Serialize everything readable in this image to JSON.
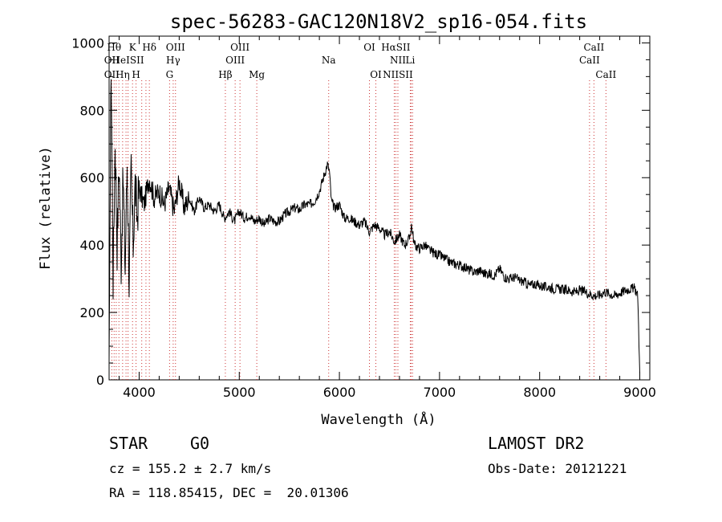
{
  "chart_data": {
    "type": "line",
    "title": "spec-56283-GAC120N18V2_sp16-054.fits",
    "xlabel": "Wavelength (Å)",
    "ylabel": "Flux (relative)",
    "xlim": [
      3700,
      9100
    ],
    "ylim": [
      0,
      1020
    ],
    "x_ticks": [
      4000,
      5000,
      6000,
      7000,
      8000,
      9000
    ],
    "y_ticks": [
      0,
      200,
      400,
      600,
      800,
      1000
    ],
    "grid": false,
    "series": [
      {
        "color": "#000000",
        "x": [
          3700,
          3720,
          3740,
          3760,
          3780,
          3800,
          3820,
          3840,
          3860,
          3880,
          3900,
          3920,
          3940,
          3960,
          3980,
          4000,
          4050,
          4100,
          4150,
          4200,
          4250,
          4300,
          4350,
          4400,
          4450,
          4500,
          4550,
          4600,
          4650,
          4700,
          4750,
          4800,
          4850,
          4900,
          4950,
          5000,
          5050,
          5100,
          5150,
          5200,
          5250,
          5300,
          5350,
          5400,
          5450,
          5500,
          5550,
          5600,
          5650,
          5700,
          5750,
          5800,
          5850,
          5880,
          5900,
          5920,
          5950,
          6000,
          6050,
          6100,
          6150,
          6200,
          6250,
          6300,
          6350,
          6400,
          6450,
          6500,
          6550,
          6600,
          6650,
          6700,
          6720,
          6750,
          6800,
          6850,
          6900,
          6950,
          7000,
          7050,
          7100,
          7150,
          7200,
          7250,
          7300,
          7350,
          7400,
          7450,
          7500,
          7550,
          7600,
          7650,
          7700,
          7750,
          7800,
          7850,
          7900,
          7950,
          8000,
          8050,
          8100,
          8150,
          8200,
          8250,
          8300,
          8350,
          8400,
          8450,
          8500,
          8550,
          8600,
          8650,
          8700,
          8750,
          8800,
          8850,
          8900,
          8950,
          8980,
          9000
        ],
        "y": [
          60,
          950,
          300,
          720,
          400,
          650,
          350,
          600,
          330,
          650,
          290,
          620,
          400,
          580,
          480,
          570,
          520,
          600,
          540,
          560,
          520,
          570,
          500,
          590,
          510,
          540,
          500,
          540,
          510,
          520,
          500,
          520,
          480,
          500,
          470,
          500,
          480,
          490,
          470,
          480,
          460,
          480,
          470,
          470,
          490,
          500,
          510,
          505,
          520,
          520,
          530,
          560,
          610,
          640,
          620,
          530,
          510,
          520,
          480,
          480,
          470,
          460,
          470,
          440,
          460,
          450,
          430,
          440,
          410,
          430,
          400,
          420,
          460,
          400,
          390,
          400,
          385,
          375,
          370,
          360,
          350,
          345,
          340,
          335,
          325,
          320,
          325,
          315,
          315,
          310,
          330,
          305,
          300,
          305,
          295,
          290,
          280,
          285,
          280,
          275,
          275,
          270,
          270,
          268,
          265,
          260,
          265,
          262,
          255,
          250,
          252,
          262,
          255,
          250,
          258,
          265,
          270,
          272,
          250,
          20
        ]
      }
    ],
    "lines": [
      {
        "x": 3727,
        "color": "#cc3333"
      },
      {
        "x": 3750,
        "color": "#cc3333"
      },
      {
        "x": 3771,
        "color": "#cc3333"
      },
      {
        "x": 3798,
        "color": "#cc3333"
      },
      {
        "x": 3835,
        "color": "#cc3333"
      },
      {
        "x": 3869,
        "color": "#cc3333"
      },
      {
        "x": 3889,
        "color": "#cc3333"
      },
      {
        "x": 3934,
        "color": "#cc3333"
      },
      {
        "x": 3969,
        "color": "#cc3333"
      },
      {
        "x": 4026,
        "color": "#cc3333"
      },
      {
        "x": 4068,
        "color": "#cc3333"
      },
      {
        "x": 4102,
        "color": "#cc3333"
      },
      {
        "x": 4304,
        "color": "#cc3333"
      },
      {
        "x": 4340,
        "color": "#cc3333"
      },
      {
        "x": 4363,
        "color": "#cc3333"
      },
      {
        "x": 4861,
        "color": "#cc3333"
      },
      {
        "x": 4959,
        "color": "#cc3333"
      },
      {
        "x": 5007,
        "color": "#cc3333"
      },
      {
        "x": 5175,
        "color": "#cc3333"
      },
      {
        "x": 5893,
        "color": "#cc3333"
      },
      {
        "x": 6300,
        "color": "#cc3333"
      },
      {
        "x": 6364,
        "color": "#cc3333"
      },
      {
        "x": 6548,
        "color": "#cc3333"
      },
      {
        "x": 6563,
        "color": "#cc3333"
      },
      {
        "x": 6584,
        "color": "#cc3333"
      },
      {
        "x": 6708,
        "color": "#cc3333"
      },
      {
        "x": 6717,
        "color": "#cc3333"
      },
      {
        "x": 6731,
        "color": "#cc3333"
      },
      {
        "x": 8498,
        "color": "#cc3333"
      },
      {
        "x": 8542,
        "color": "#cc3333"
      },
      {
        "x": 8662,
        "color": "#cc3333"
      }
    ],
    "line_labels": [
      {
        "text": "Hθ",
        "x": 3750,
        "row": 0
      },
      {
        "text": "K",
        "x": 3934,
        "row": 0
      },
      {
        "text": "Hδ",
        "x": 4102,
        "row": 0
      },
      {
        "text": "OIII",
        "x": 4363,
        "row": 0
      },
      {
        "text": "OIII",
        "x": 5007,
        "row": 0
      },
      {
        "text": "OI",
        "x": 6300,
        "row": 0
      },
      {
        "text": "HαSII",
        "x": 6563,
        "row": 0
      },
      {
        "text": "CaII",
        "x": 8542,
        "row": 0
      },
      {
        "text": "OII",
        "x": 3727,
        "row": 1
      },
      {
        "text": "HeISII",
        "x": 3889,
        "row": 1
      },
      {
        "text": "Hγ",
        "x": 4340,
        "row": 1
      },
      {
        "text": "OIII",
        "x": 4959,
        "row": 1
      },
      {
        "text": "Na",
        "x": 5893,
        "row": 1
      },
      {
        "text": "NII",
        "x": 6584,
        "row": 1
      },
      {
        "text": "Li",
        "x": 6708,
        "row": 1
      },
      {
        "text": "CaII",
        "x": 8498,
        "row": 1
      },
      {
        "text": "OII",
        "x": 3727,
        "row": 2
      },
      {
        "text": "Hη",
        "x": 3835,
        "row": 2
      },
      {
        "text": "H",
        "x": 3969,
        "row": 2
      },
      {
        "text": "G",
        "x": 4304,
        "row": 2
      },
      {
        "text": "Hβ",
        "x": 4861,
        "row": 2
      },
      {
        "text": "Mg",
        "x": 5175,
        "row": 2
      },
      {
        "text": "OI",
        "x": 6364,
        "row": 2
      },
      {
        "text": "NIISII",
        "x": 6584,
        "row": 2
      },
      {
        "text": "CaII",
        "x": 8662,
        "row": 2
      }
    ]
  },
  "footer": {
    "class": "STAR",
    "subclass": "G0",
    "survey": "LAMOST DR2",
    "cz": "cz = 155.2 ± 2.7 km/s",
    "obs_date": "Obs-Date: 20121221",
    "radec": "RA = 118.85415, DEC =  20.01306"
  }
}
